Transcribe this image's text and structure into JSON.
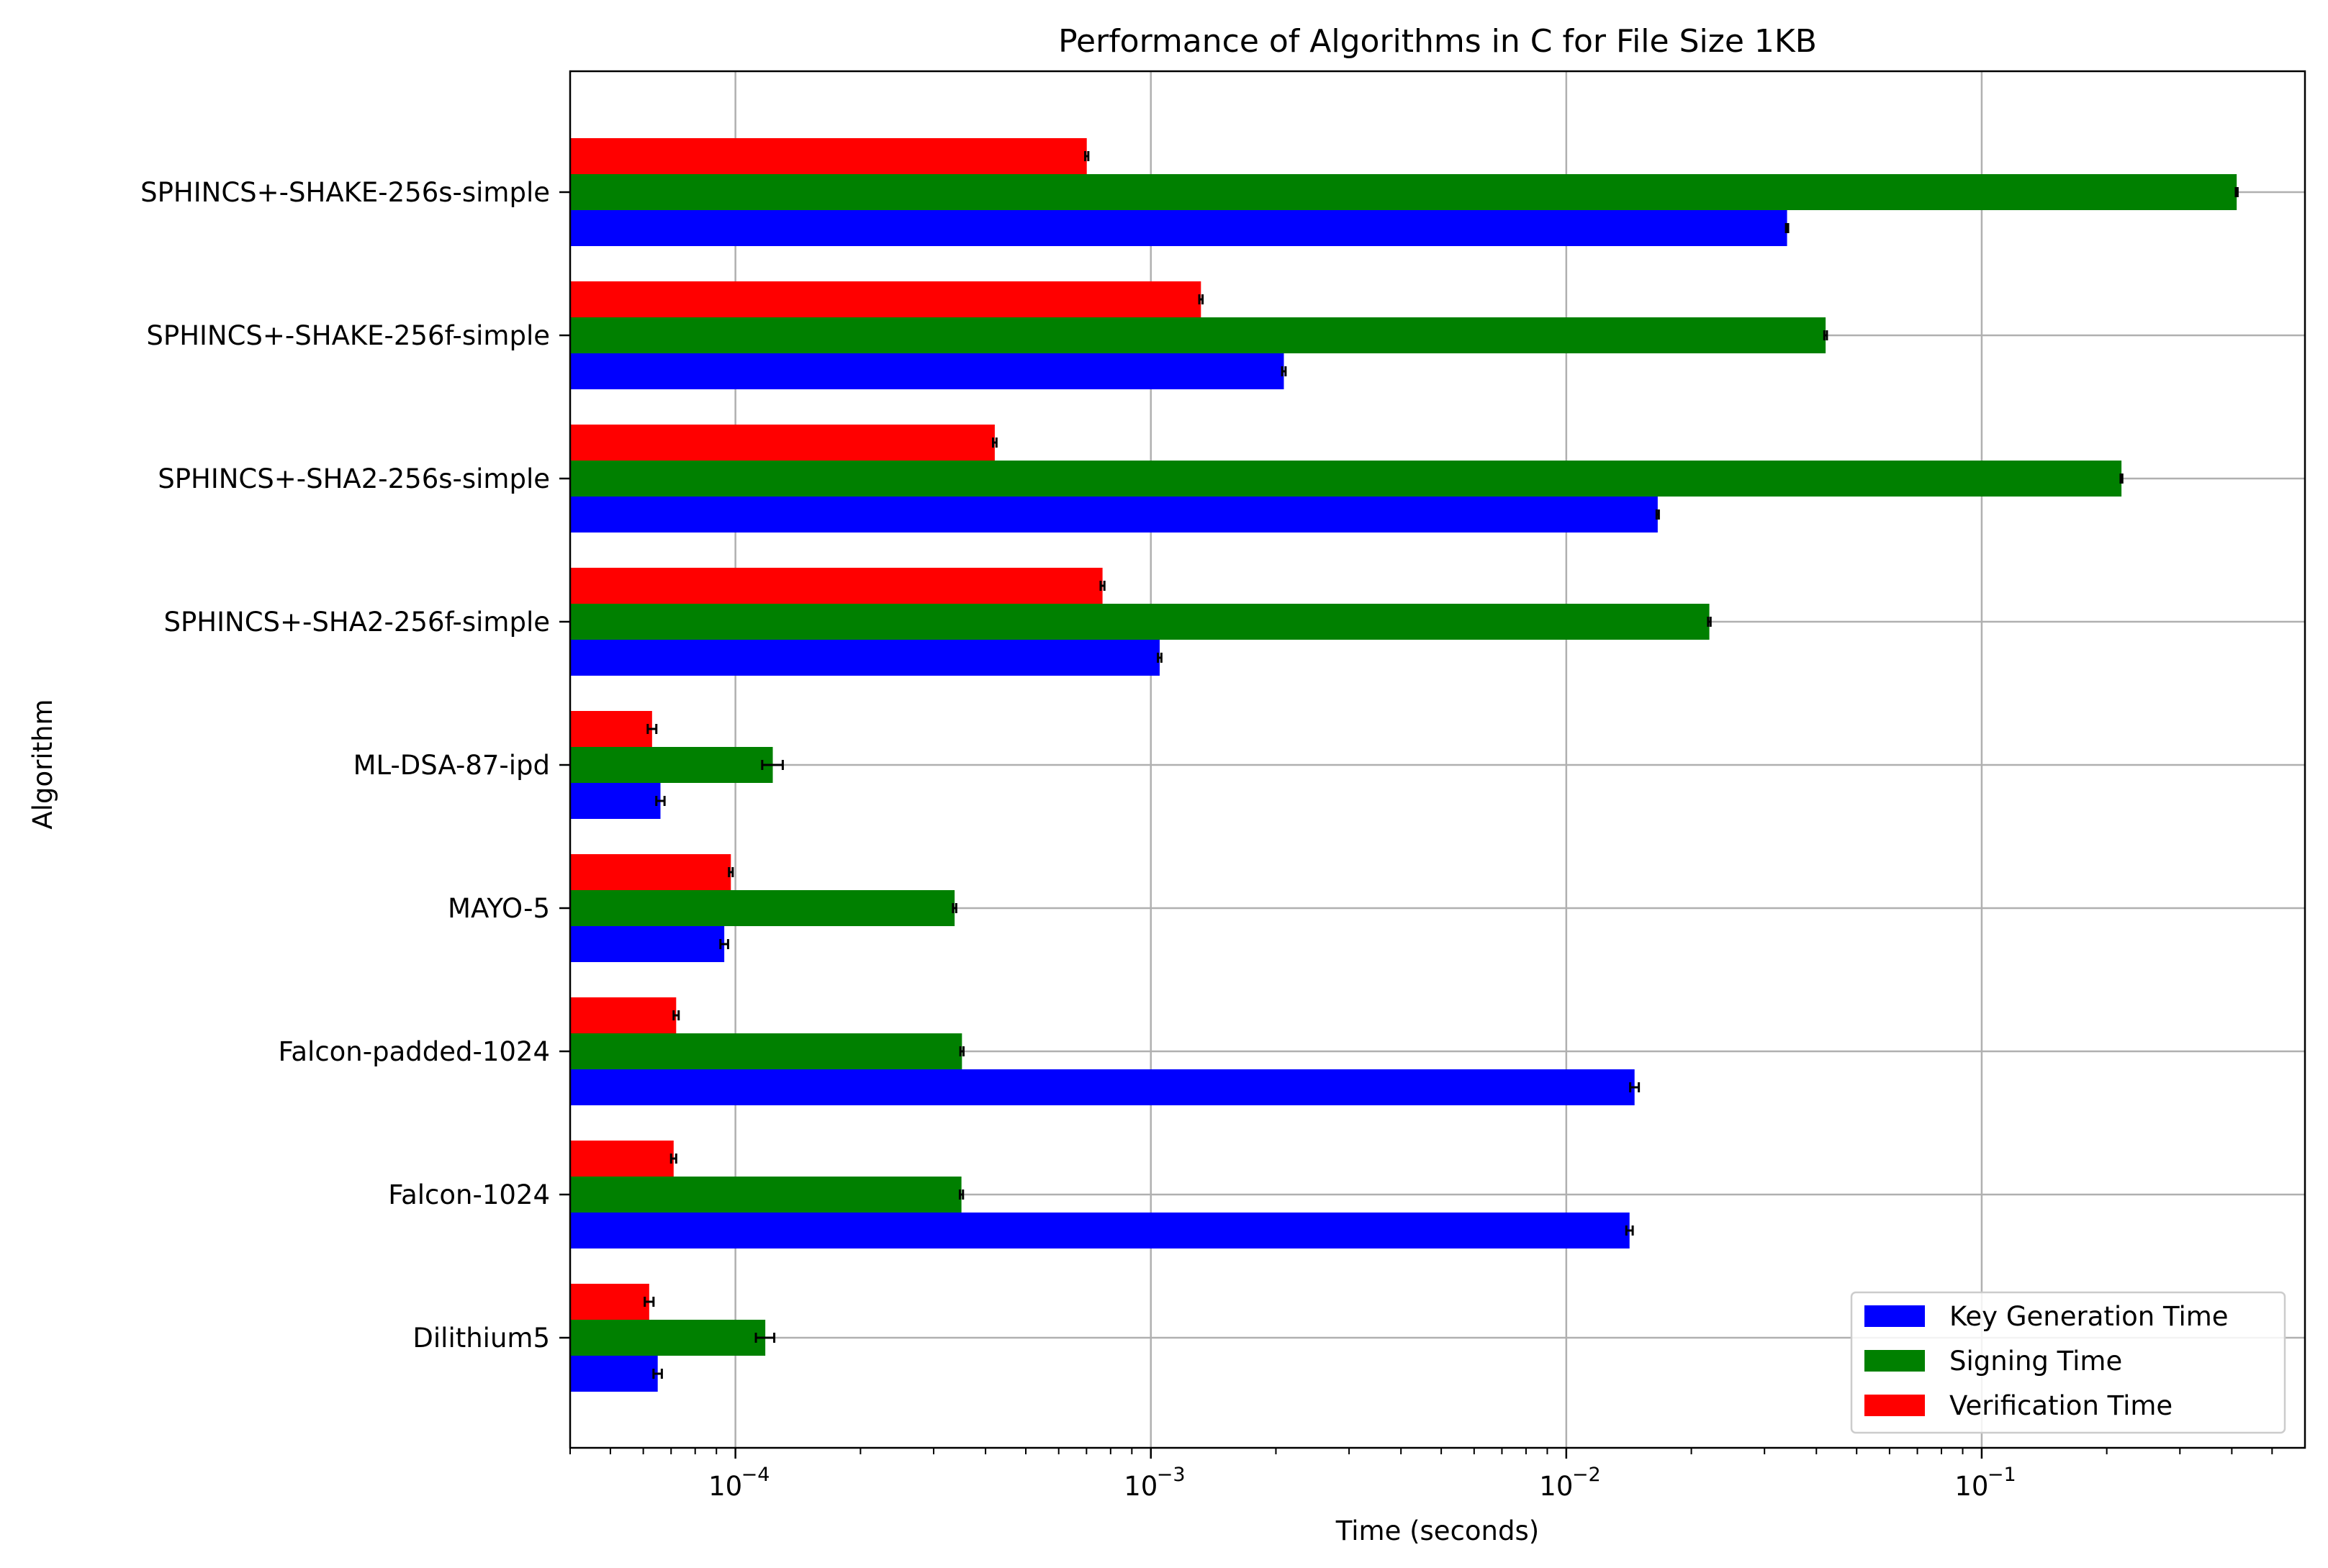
{
  "chart_data": {
    "type": "bar",
    "orientation": "horizontal",
    "title": "Performance of Algorithms in C for File Size 1KB",
    "xlabel": "Time (seconds)",
    "ylabel": "Algorithm",
    "x_scale": "log",
    "xlim": [
      4e-05,
      0.6
    ],
    "x_ticks": [
      {
        "value": 0.0001,
        "mantissa": "10",
        "exponent": "−4"
      },
      {
        "value": 0.001,
        "mantissa": "10",
        "exponent": "−3"
      },
      {
        "value": 0.01,
        "mantissa": "10",
        "exponent": "−2"
      },
      {
        "value": 0.1,
        "mantissa": "10",
        "exponent": "−1"
      }
    ],
    "grid": true,
    "legend_position": "lower-right",
    "categories": [
      "Dilithium5",
      "Falcon-1024",
      "Falcon-padded-1024",
      "MAYO-5",
      "ML-DSA-87-ipd",
      "SPHINCS+-SHA2-256f-simple",
      "SPHINCS+-SHA2-256s-simple",
      "SPHINCS+-SHAKE-256f-simple",
      "SPHINCS+-SHAKE-256s-simple"
    ],
    "series": [
      {
        "name": "Key Generation Time",
        "color": "#0000ff",
        "values": [
          6.5e-05,
          0.0142,
          0.0146,
          9.4e-05,
          6.6e-05,
          0.00105,
          0.0166,
          0.00209,
          0.034
        ],
        "errors": [
          1.5e-06,
          0.00025,
          0.00035,
          2e-06,
          1.5e-06,
          1e-05,
          0.0001,
          2e-05,
          0.0002
        ]
      },
      {
        "name": "Signing Time",
        "color": "#008000",
        "values": [
          0.000118,
          0.00035,
          0.000351,
          0.000337,
          0.000123,
          0.0221,
          0.217,
          0.0421,
          0.411
        ],
        "errors": [
          6e-06,
          3e-06,
          3e-06,
          3e-06,
          7e-06,
          0.00015,
          0.001,
          0.0003,
          0.002
        ]
      },
      {
        "name": "Verification Time",
        "color": "#ff0000",
        "values": [
          6.2e-05,
          7.1e-05,
          7.2e-05,
          9.75e-05,
          6.3e-05,
          0.000765,
          0.000421,
          0.00132,
          0.000701
        ],
        "errors": [
          1.5e-06,
          1e-06,
          1e-06,
          1e-06,
          1.5e-06,
          8e-06,
          4e-06,
          1.2e-05,
          6e-06
        ]
      }
    ]
  }
}
